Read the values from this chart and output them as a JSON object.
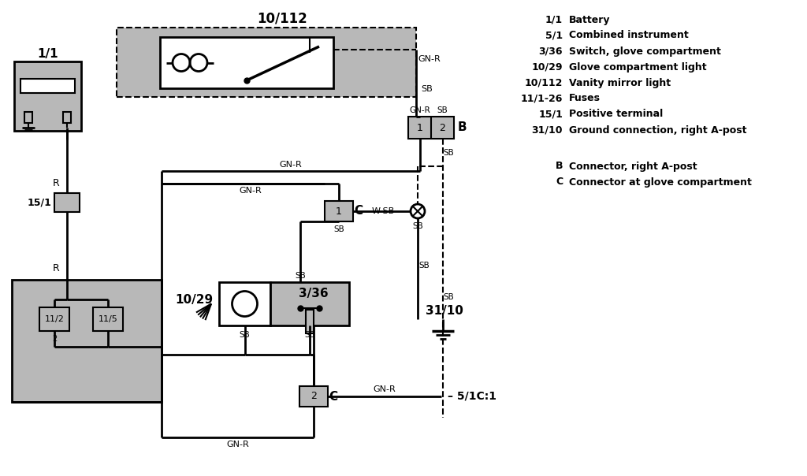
{
  "bg_color": "#ffffff",
  "gray_fill": "#b8b8b8",
  "line_color": "#000000",
  "legend_items": [
    [
      "1/1",
      "Battery"
    ],
    [
      "5/1",
      "Combined instrument"
    ],
    [
      "3/36",
      "Switch, glove compartment"
    ],
    [
      "10/29",
      "Glove compartment light"
    ],
    [
      "10/112",
      "Vanity mirror light"
    ],
    [
      "11/1-26",
      "Fuses"
    ],
    [
      "15/1",
      "Positive terminal"
    ],
    [
      "31/10",
      "Ground connection, right A-post"
    ]
  ],
  "legend_connectors": [
    [
      "B",
      "Connector, right A-post"
    ],
    [
      "C",
      "Connector at glove compartment"
    ]
  ]
}
